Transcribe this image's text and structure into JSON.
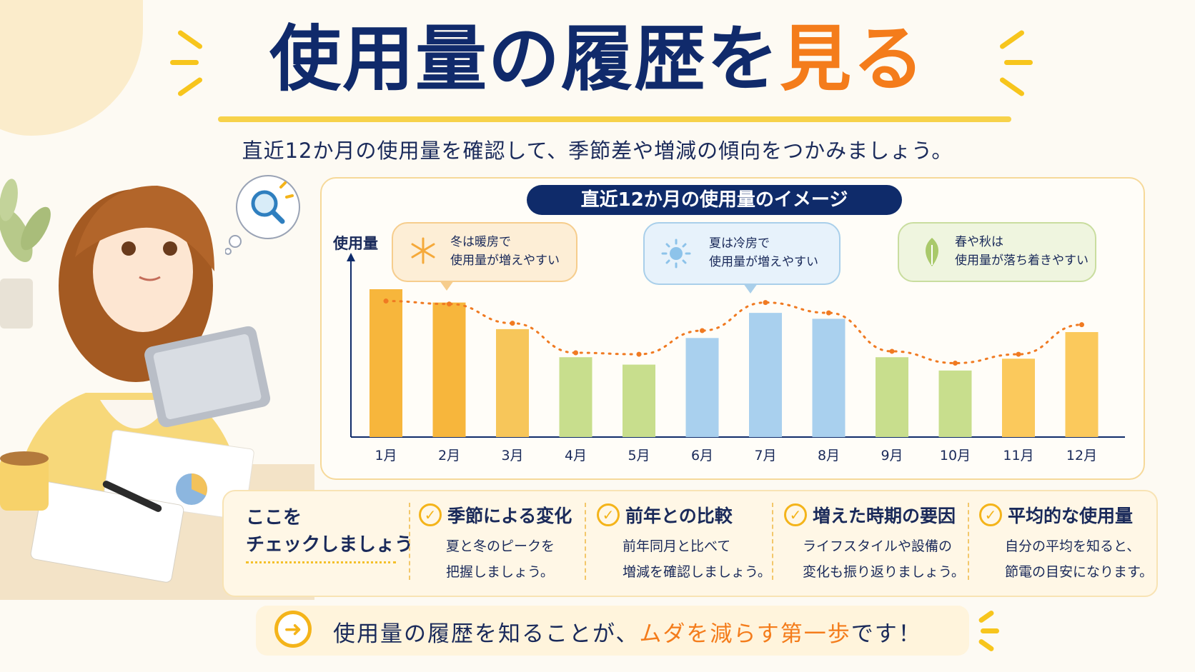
{
  "header": {
    "title_main": "使用量の履歴を",
    "title_highlight": "見る",
    "subtitle": "直近12か月の使用量を確認して、季節差や増減の傾向をつかみましょう。"
  },
  "chart_data": {
    "type": "bar",
    "title": "直近12か月の使用量のイメージ",
    "ylabel": "使用量",
    "xlabel": "",
    "categories": [
      "1月",
      "2月",
      "3月",
      "4月",
      "5月",
      "6月",
      "7月",
      "8月",
      "9月",
      "10月",
      "11月",
      "12月"
    ],
    "values": [
      100,
      91,
      73,
      54,
      49,
      67,
      84,
      80,
      54,
      45,
      53,
      71
    ],
    "trend": [
      92,
      90,
      77,
      57,
      56,
      72,
      91,
      84,
      58,
      50,
      56,
      76
    ],
    "ylim": [
      0,
      110
    ],
    "grid": false,
    "bar_colors": [
      "#f7b63c",
      "#f7b63c",
      "#f7c65a",
      "#c8de8d",
      "#c8de8d",
      "#a9d0ee",
      "#a9d0ee",
      "#a9d0ee",
      "#c8de8d",
      "#c8de8d",
      "#fbc95c",
      "#fbc95c"
    ],
    "trend_color": "#f07a22",
    "annotations": [
      {
        "icon": "snowflake-icon",
        "line1": "冬は暖房で",
        "line2": "使用量が増えやすい"
      },
      {
        "icon": "sun-icon",
        "line1": "夏は冷房で",
        "line2": "使用量が増えやすい"
      },
      {
        "icon": "leaf-icon",
        "line1": "春や秋は",
        "line2": "使用量が落ち着きやすい"
      }
    ]
  },
  "checklist": {
    "intro_line1": "ここを",
    "intro_line2": "チェックしましょう",
    "items": [
      {
        "title": "季節による変化",
        "line1": "夏と冬のピークを",
        "line2": "把握しましょう。"
      },
      {
        "title": "前年との比較",
        "line1": "前年同月と比べて",
        "line2": "増減を確認しましょう。"
      },
      {
        "title": "増えた時期の要因",
        "line1": "ライフスタイルや設備の",
        "line2": "変化も振り返りましょう。"
      },
      {
        "title": "平均的な使用量",
        "line1": "自分の平均を知ると、",
        "line2": "節電の目安になります。"
      }
    ]
  },
  "footer": {
    "text_before": "使用量の履歴を知ることが、",
    "text_highlight": "ムダを減らす第一歩",
    "text_after": "です！"
  },
  "colors": {
    "navy": "#102a6b",
    "orange": "#f47c1b",
    "yellow": "#f4b41a"
  }
}
